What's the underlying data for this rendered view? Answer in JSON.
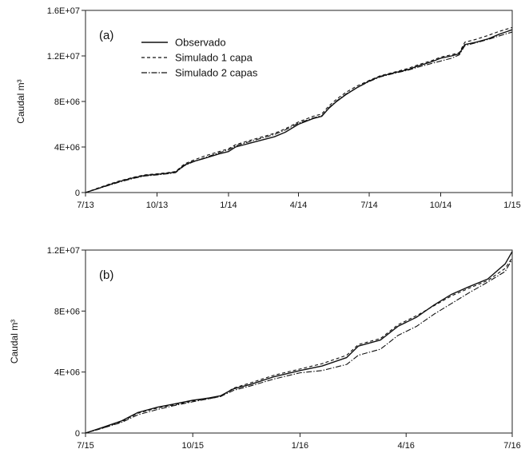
{
  "chart_data": [
    {
      "type": "line",
      "panel_label": "(a)",
      "ylabel": "Caudal m³",
      "ylim": [
        0,
        16000000
      ],
      "y_ticks": [
        {
          "value": 0,
          "label": "0"
        },
        {
          "value": 4000000,
          "label": "4E+06"
        },
        {
          "value": 8000000,
          "label": "8E+06"
        },
        {
          "value": 12000000,
          "label": "1.2E+07"
        },
        {
          "value": 16000000,
          "label": "1.6E+07"
        }
      ],
      "xlim": [
        "2013-07-01",
        "2015-01-01"
      ],
      "x_ticks": [
        {
          "value": "2013-07-01",
          "label": "7/13"
        },
        {
          "value": "2013-10-01",
          "label": "10/13"
        },
        {
          "value": "2014-01-01",
          "label": "1/14"
        },
        {
          "value": "2014-04-01",
          "label": "4/14"
        },
        {
          "value": "2014-07-01",
          "label": "7/14"
        },
        {
          "value": "2014-10-01",
          "label": "10/14"
        },
        {
          "value": "2015-01-01",
          "label": "1/15"
        }
      ],
      "legend": {
        "position": "top-left"
      },
      "series": [
        {
          "name": "Observado",
          "style": "solid",
          "points": [
            [
              "2013-07-01",
              0
            ],
            [
              "2013-07-15",
              300000
            ],
            [
              "2013-08-01",
              700000
            ],
            [
              "2013-08-15",
              1000000
            ],
            [
              "2013-09-01",
              1300000
            ],
            [
              "2013-09-15",
              1500000
            ],
            [
              "2013-10-01",
              1600000
            ],
            [
              "2013-10-15",
              1700000
            ],
            [
              "2013-10-25",
              1800000
            ],
            [
              "2013-11-05",
              2400000
            ],
            [
              "2013-11-15",
              2700000
            ],
            [
              "2013-12-01",
              3000000
            ],
            [
              "2013-12-20",
              3400000
            ],
            [
              "2014-01-01",
              3600000
            ],
            [
              "2014-01-10",
              4000000
            ],
            [
              "2014-02-01",
              4400000
            ],
            [
              "2014-03-01",
              4900000
            ],
            [
              "2014-03-15",
              5300000
            ],
            [
              "2014-04-01",
              6000000
            ],
            [
              "2014-04-20",
              6500000
            ],
            [
              "2014-05-01",
              6700000
            ],
            [
              "2014-05-10",
              7400000
            ],
            [
              "2014-05-20",
              8000000
            ],
            [
              "2014-06-01",
              8600000
            ],
            [
              "2014-06-15",
              9200000
            ],
            [
              "2014-07-01",
              9800000
            ],
            [
              "2014-07-15",
              10200000
            ],
            [
              "2014-08-01",
              10500000
            ],
            [
              "2014-08-20",
              10800000
            ],
            [
              "2014-09-01",
              11100000
            ],
            [
              "2014-09-20",
              11500000
            ],
            [
              "2014-10-01",
              11800000
            ],
            [
              "2014-10-15",
              12000000
            ],
            [
              "2014-10-25",
              12200000
            ],
            [
              "2014-11-01",
              13000000
            ],
            [
              "2014-11-15",
              13200000
            ],
            [
              "2014-12-01",
              13500000
            ],
            [
              "2014-12-15",
              13900000
            ],
            [
              "2015-01-01",
              14300000
            ]
          ]
        },
        {
          "name": "Simulado 1 capa",
          "style": "dashed",
          "points": [
            [
              "2013-07-01",
              0
            ],
            [
              "2013-07-15",
              350000
            ],
            [
              "2013-08-01",
              750000
            ],
            [
              "2013-08-15",
              1050000
            ],
            [
              "2013-09-01",
              1350000
            ],
            [
              "2013-09-15",
              1550000
            ],
            [
              "2013-10-01",
              1650000
            ],
            [
              "2013-10-15",
              1750000
            ],
            [
              "2013-10-25",
              1850000
            ],
            [
              "2013-11-05",
              2500000
            ],
            [
              "2013-11-15",
              2800000
            ],
            [
              "2013-12-01",
              3200000
            ],
            [
              "2013-12-20",
              3600000
            ],
            [
              "2014-01-01",
              3850000
            ],
            [
              "2014-01-10",
              4200000
            ],
            [
              "2014-02-01",
              4650000
            ],
            [
              "2014-03-01",
              5200000
            ],
            [
              "2014-03-15",
              5600000
            ],
            [
              "2014-04-01",
              6200000
            ],
            [
              "2014-04-20",
              6700000
            ],
            [
              "2014-05-01",
              6900000
            ],
            [
              "2014-05-10",
              7600000
            ],
            [
              "2014-05-20",
              8200000
            ],
            [
              "2014-06-01",
              8800000
            ],
            [
              "2014-06-15",
              9350000
            ],
            [
              "2014-07-01",
              9850000
            ],
            [
              "2014-07-15",
              10250000
            ],
            [
              "2014-08-01",
              10550000
            ],
            [
              "2014-08-20",
              10900000
            ],
            [
              "2014-09-01",
              11200000
            ],
            [
              "2014-09-20",
              11600000
            ],
            [
              "2014-10-01",
              11900000
            ],
            [
              "2014-10-15",
              12100000
            ],
            [
              "2014-10-25",
              12300000
            ],
            [
              "2014-11-01",
              13200000
            ],
            [
              "2014-11-15",
              13450000
            ],
            [
              "2014-12-01",
              13800000
            ],
            [
              "2014-12-15",
              14150000
            ],
            [
              "2015-01-01",
              14500000
            ]
          ]
        },
        {
          "name": "Simulado 2 capas",
          "style": "dash-dot",
          "points": [
            [
              "2013-07-01",
              0
            ],
            [
              "2013-07-15",
              300000
            ],
            [
              "2013-08-01",
              650000
            ],
            [
              "2013-08-15",
              950000
            ],
            [
              "2013-09-01",
              1250000
            ],
            [
              "2013-09-15",
              1450000
            ],
            [
              "2013-10-01",
              1550000
            ],
            [
              "2013-10-15",
              1650000
            ],
            [
              "2013-10-25",
              1750000
            ],
            [
              "2013-11-05",
              2350000
            ],
            [
              "2013-11-15",
              2650000
            ],
            [
              "2013-12-01",
              3050000
            ],
            [
              "2013-12-20",
              3500000
            ],
            [
              "2014-01-01",
              3750000
            ],
            [
              "2014-01-10",
              4100000
            ],
            [
              "2014-02-01",
              4550000
            ],
            [
              "2014-03-01",
              5100000
            ],
            [
              "2014-03-15",
              5500000
            ],
            [
              "2014-04-01",
              6100000
            ],
            [
              "2014-04-20",
              6550000
            ],
            [
              "2014-05-01",
              6750000
            ],
            [
              "2014-05-10",
              7450000
            ],
            [
              "2014-05-20",
              8050000
            ],
            [
              "2014-06-01",
              8650000
            ],
            [
              "2014-06-15",
              9200000
            ],
            [
              "2014-07-01",
              9750000
            ],
            [
              "2014-07-15",
              10150000
            ],
            [
              "2014-08-01",
              10450000
            ],
            [
              "2014-08-20",
              10750000
            ],
            [
              "2014-09-01",
              11000000
            ],
            [
              "2014-09-20",
              11350000
            ],
            [
              "2014-10-01",
              11550000
            ],
            [
              "2014-10-15",
              11800000
            ],
            [
              "2014-10-25",
              12100000
            ],
            [
              "2014-11-01",
              12900000
            ],
            [
              "2014-11-15",
              13150000
            ],
            [
              "2014-12-01",
              13450000
            ],
            [
              "2014-12-15",
              13750000
            ],
            [
              "2015-01-01",
              14100000
            ]
          ]
        }
      ]
    },
    {
      "type": "line",
      "panel_label": "(b)",
      "ylabel": "Caudal m³",
      "ylim": [
        0,
        12000000
      ],
      "y_ticks": [
        {
          "value": 0,
          "label": "0"
        },
        {
          "value": 4000000,
          "label": "4E+06"
        },
        {
          "value": 8000000,
          "label": "8E+06"
        },
        {
          "value": 12000000,
          "label": "1.2E+07"
        }
      ],
      "xlim": [
        "2015-07-01",
        "2016-07-01"
      ],
      "x_ticks": [
        {
          "value": "2015-07-01",
          "label": "7/15"
        },
        {
          "value": "2015-10-01",
          "label": "10/15"
        },
        {
          "value": "2016-01-01",
          "label": "1/16"
        },
        {
          "value": "2016-04-01",
          "label": "4/16"
        },
        {
          "value": "2016-07-01",
          "label": "7/16"
        }
      ],
      "series": [
        {
          "name": "Observado",
          "style": "solid",
          "points": [
            [
              "2015-07-01",
              0
            ],
            [
              "2015-07-15",
              350000
            ],
            [
              "2015-08-01",
              800000
            ],
            [
              "2015-08-15",
              1350000
            ],
            [
              "2015-09-01",
              1700000
            ],
            [
              "2015-09-15",
              1900000
            ],
            [
              "2015-10-01",
              2150000
            ],
            [
              "2015-10-15",
              2300000
            ],
            [
              "2015-10-25",
              2450000
            ],
            [
              "2015-11-05",
              2900000
            ],
            [
              "2015-11-20",
              3200000
            ],
            [
              "2015-12-10",
              3700000
            ],
            [
              "2016-01-01",
              4100000
            ],
            [
              "2016-01-20",
              4400000
            ],
            [
              "2016-02-10",
              4950000
            ],
            [
              "2016-02-20",
              5700000
            ],
            [
              "2016-03-10",
              6100000
            ],
            [
              "2016-03-25",
              7000000
            ],
            [
              "2016-04-10",
              7600000
            ],
            [
              "2016-04-25",
              8400000
            ],
            [
              "2016-05-10",
              9100000
            ],
            [
              "2016-05-25",
              9600000
            ],
            [
              "2016-06-10",
              10100000
            ],
            [
              "2016-06-25",
              11100000
            ],
            [
              "2016-07-01",
              11900000
            ]
          ]
        },
        {
          "name": "Simulado 1 capa",
          "style": "dashed",
          "points": [
            [
              "2015-07-01",
              0
            ],
            [
              "2015-07-15",
              300000
            ],
            [
              "2015-08-01",
              750000
            ],
            [
              "2015-08-15",
              1300000
            ],
            [
              "2015-09-01",
              1650000
            ],
            [
              "2015-09-15",
              1850000
            ],
            [
              "2015-10-01",
              2100000
            ],
            [
              "2015-10-15",
              2250000
            ],
            [
              "2015-10-25",
              2400000
            ],
            [
              "2015-11-05",
              2950000
            ],
            [
              "2015-11-20",
              3300000
            ],
            [
              "2015-12-10",
              3800000
            ],
            [
              "2016-01-01",
              4200000
            ],
            [
              "2016-01-20",
              4550000
            ],
            [
              "2016-02-10",
              5100000
            ],
            [
              "2016-02-20",
              5800000
            ],
            [
              "2016-03-10",
              6200000
            ],
            [
              "2016-03-25",
              7100000
            ],
            [
              "2016-04-10",
              7700000
            ],
            [
              "2016-04-25",
              8350000
            ],
            [
              "2016-05-10",
              9000000
            ],
            [
              "2016-05-25",
              9500000
            ],
            [
              "2016-06-10",
              10000000
            ],
            [
              "2016-06-25",
              10800000
            ],
            [
              "2016-07-01",
              11500000
            ]
          ]
        },
        {
          "name": "Simulado 2 capas",
          "style": "dash-dot",
          "points": [
            [
              "2015-07-01",
              0
            ],
            [
              "2015-07-15",
              300000
            ],
            [
              "2015-08-01",
              700000
            ],
            [
              "2015-08-15",
              1200000
            ],
            [
              "2015-09-01",
              1550000
            ],
            [
              "2015-09-15",
              1800000
            ],
            [
              "2015-10-01",
              2050000
            ],
            [
              "2015-10-15",
              2250000
            ],
            [
              "2015-10-25",
              2400000
            ],
            [
              "2015-11-05",
              2800000
            ],
            [
              "2015-11-20",
              3100000
            ],
            [
              "2015-12-10",
              3550000
            ],
            [
              "2016-01-01",
              3950000
            ],
            [
              "2016-01-20",
              4100000
            ],
            [
              "2016-02-10",
              4500000
            ],
            [
              "2016-02-20",
              5100000
            ],
            [
              "2016-03-10",
              5500000
            ],
            [
              "2016-03-25",
              6400000
            ],
            [
              "2016-04-10",
              7000000
            ],
            [
              "2016-04-25",
              7800000
            ],
            [
              "2016-05-10",
              8500000
            ],
            [
              "2016-05-25",
              9200000
            ],
            [
              "2016-06-10",
              9900000
            ],
            [
              "2016-06-25",
              10600000
            ],
            [
              "2016-07-01",
              11400000
            ]
          ]
        }
      ]
    }
  ]
}
